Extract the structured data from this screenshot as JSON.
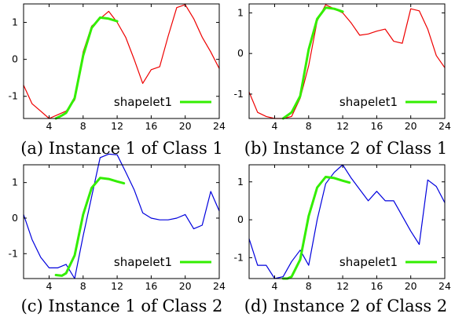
{
  "colors": {
    "shapelet": "#33ee00",
    "class1": "#ee0000",
    "class2": "#0000dd"
  },
  "chart_data": [
    {
      "type": "line",
      "caption": "(a) Instance 1 of Class 1",
      "xlim": [
        1,
        24
      ],
      "ylim": [
        -1.6,
        1.5
      ],
      "xticks": [
        4,
        8,
        12,
        16,
        20,
        24
      ],
      "yticks": [
        -1,
        0,
        1
      ],
      "grid": false,
      "legend_position": "bottom-right",
      "series": [
        {
          "name": "",
          "color": "#ee0000",
          "x": [
            1,
            2,
            3,
            4,
            5,
            6,
            7,
            8,
            9,
            10,
            11,
            12,
            13,
            14,
            15,
            16,
            17,
            18,
            19,
            20,
            21,
            22,
            23,
            24
          ],
          "y": [
            -0.7,
            -1.2,
            -1.4,
            -1.6,
            -1.5,
            -1.4,
            -1.1,
            0.2,
            0.9,
            1.1,
            1.3,
            1.0,
            0.6,
            0.0,
            -0.65,
            -0.28,
            -0.2,
            0.63,
            1.4,
            1.48,
            1.1,
            0.6,
            0.2,
            -0.25
          ]
        },
        {
          "name": "shapelet1",
          "color": "#33ee00",
          "x": [
            4.8,
            5.5,
            6,
            7,
            8,
            9,
            10,
            11,
            12
          ],
          "y": [
            -1.6,
            -1.52,
            -1.45,
            -1.05,
            0.1,
            0.85,
            1.13,
            1.1,
            1.03
          ]
        }
      ]
    },
    {
      "type": "line",
      "caption": "(b) Instance 2 of Class 1",
      "xlim": [
        1,
        24
      ],
      "ylim": [
        -1.6,
        1.22
      ],
      "xticks": [
        4,
        8,
        12,
        16,
        20,
        24
      ],
      "yticks": [
        -1,
        0,
        1
      ],
      "grid": false,
      "legend_position": "bottom-right",
      "series": [
        {
          "name": "",
          "color": "#ee0000",
          "x": [
            1,
            2,
            3,
            4,
            5,
            6,
            7,
            8,
            9,
            10,
            11,
            12,
            13,
            14,
            15,
            16,
            17,
            18,
            19,
            20,
            21,
            22,
            23,
            24
          ],
          "y": [
            -0.95,
            -1.45,
            -1.55,
            -1.6,
            -1.6,
            -1.55,
            -1.1,
            -0.3,
            0.8,
            1.2,
            1.1,
            1.0,
            0.75,
            0.45,
            0.48,
            0.55,
            0.6,
            0.3,
            0.25,
            1.1,
            1.05,
            0.6,
            -0.05,
            -0.35
          ]
        },
        {
          "name": "shapelet1",
          "color": "#33ee00",
          "x": [
            5,
            6,
            7,
            8,
            9,
            10,
            11,
            12
          ],
          "y": [
            -1.6,
            -1.45,
            -1.05,
            0.1,
            0.85,
            1.13,
            1.1,
            1.03
          ]
        }
      ]
    },
    {
      "type": "line",
      "caption": "(c) Instance 1 of Class 2",
      "xlim": [
        1,
        24
      ],
      "ylim": [
        -1.7,
        1.5
      ],
      "xticks": [
        4,
        8,
        12,
        16,
        20,
        24
      ],
      "yticks": [
        -1,
        0,
        1
      ],
      "grid": false,
      "legend_position": "bottom-right",
      "series": [
        {
          "name": "",
          "color": "#0000dd",
          "x": [
            1,
            2,
            3,
            4,
            5,
            6,
            7,
            8,
            9,
            10,
            11,
            12,
            13,
            14,
            15,
            16,
            17,
            18,
            19,
            20,
            21,
            22,
            23,
            24
          ],
          "y": [
            0.1,
            -0.6,
            -1.1,
            -1.4,
            -1.4,
            -1.3,
            -1.7,
            -0.5,
            0.6,
            1.7,
            1.8,
            1.78,
            1.3,
            0.8,
            0.15,
            0.0,
            -0.05,
            -0.05,
            0.0,
            0.1,
            -0.3,
            -0.2,
            0.75,
            0.2
          ]
        },
        {
          "name": "shapelet1",
          "color": "#33ee00",
          "x": [
            4.8,
            5.5,
            6,
            7,
            8,
            9,
            10,
            11,
            12,
            12.8
          ],
          "y": [
            -1.6,
            -1.62,
            -1.55,
            -1.05,
            0.1,
            0.85,
            1.13,
            1.1,
            1.03,
            0.98
          ]
        }
      ]
    },
    {
      "type": "line",
      "caption": "(d) Instance 2 of Class 2",
      "xlim": [
        1,
        24
      ],
      "ylim": [
        -1.55,
        1.45
      ],
      "xticks": [
        4,
        8,
        12,
        16,
        20,
        24
      ],
      "yticks": [
        -1,
        0,
        1
      ],
      "grid": false,
      "legend_position": "bottom-right",
      "series": [
        {
          "name": "",
          "color": "#0000dd",
          "x": [
            1,
            2,
            3,
            4,
            5,
            6,
            7,
            8,
            9,
            10,
            11,
            12,
            13,
            14,
            15,
            16,
            17,
            18,
            19,
            20,
            21,
            22,
            23,
            24
          ],
          "y": [
            -0.5,
            -1.2,
            -1.2,
            -1.55,
            -1.5,
            -1.1,
            -0.8,
            -1.2,
            0.0,
            0.95,
            1.25,
            1.45,
            1.1,
            0.8,
            0.5,
            0.75,
            0.5,
            0.5,
            0.1,
            -0.3,
            -0.65,
            1.05,
            0.88,
            0.45
          ]
        },
        {
          "name": "shapelet1",
          "color": "#33ee00",
          "x": [
            5,
            5.5,
            6,
            7,
            8,
            9,
            10,
            11,
            12,
            12.8
          ],
          "y": [
            -1.55,
            -1.55,
            -1.5,
            -1.05,
            0.1,
            0.85,
            1.13,
            1.1,
            1.03,
            0.98
          ]
        }
      ]
    }
  ]
}
